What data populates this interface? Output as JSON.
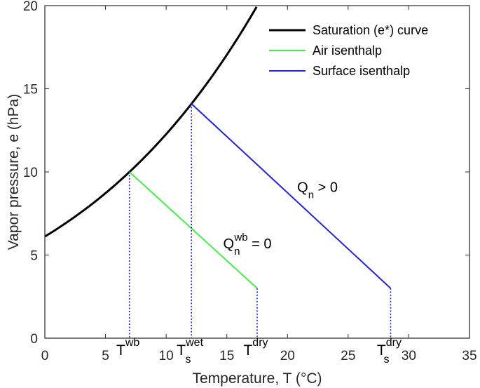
{
  "chart_data": {
    "type": "line",
    "xlabel_prefix": "Temperature, T (",
    "xlabel_unit": "°C",
    "xlabel_suffix": ")",
    "ylabel": "Vapor pressure, e (hPa)",
    "xlim": [
      0,
      35
    ],
    "ylim": [
      0,
      20
    ],
    "xticks": [
      0,
      5,
      10,
      15,
      20,
      25,
      30,
      35
    ],
    "yticks": [
      0,
      5,
      10,
      15,
      20
    ],
    "series": [
      {
        "name": "Saturation (e*) curve",
        "color": "#000000",
        "x": [
          0,
          2,
          4,
          6,
          6.97,
          8,
          10,
          12,
          12.08,
          14,
          16,
          17.45
        ],
        "y": [
          6.11,
          7.06,
          8.13,
          9.35,
          10.0,
          10.73,
          12.28,
          14.02,
          14.1,
          15.98,
          18.17,
          20.0
        ]
      },
      {
        "name": "Air isenthalp",
        "color": "#44ee44",
        "x": [
          6.97,
          17.5
        ],
        "y": [
          10.0,
          3.0
        ]
      },
      {
        "name": "Surface isenthalp",
        "color": "#2222dd",
        "x": [
          12.08,
          28.5
        ],
        "y": [
          14.1,
          3.0
        ]
      }
    ],
    "guides": [
      {
        "x": 6.97,
        "y_top": 10.0,
        "base": "T",
        "sup": "wb",
        "sub": ""
      },
      {
        "x": 12.08,
        "y_top": 14.1,
        "base": "T",
        "sup": "wet",
        "sub": "s"
      },
      {
        "x": 17.5,
        "y_top": 3.0,
        "base": "T",
        "sup": "dry",
        "sub": ""
      },
      {
        "x": 28.5,
        "y_top": 3.0,
        "base": "T",
        "sup": "dry",
        "sub": "s"
      }
    ],
    "guide_color": "#1f1fcc",
    "annotations": [
      {
        "x": 14.7,
        "y": 5.4,
        "base": "Q",
        "sub": "n",
        "sup": "wb",
        "rest": " = 0"
      },
      {
        "x": 20.8,
        "y": 8.8,
        "base": "Q",
        "sub": "n",
        "sup": "",
        "rest": " > 0"
      }
    ],
    "legend_position": "top-right",
    "grid": false
  }
}
